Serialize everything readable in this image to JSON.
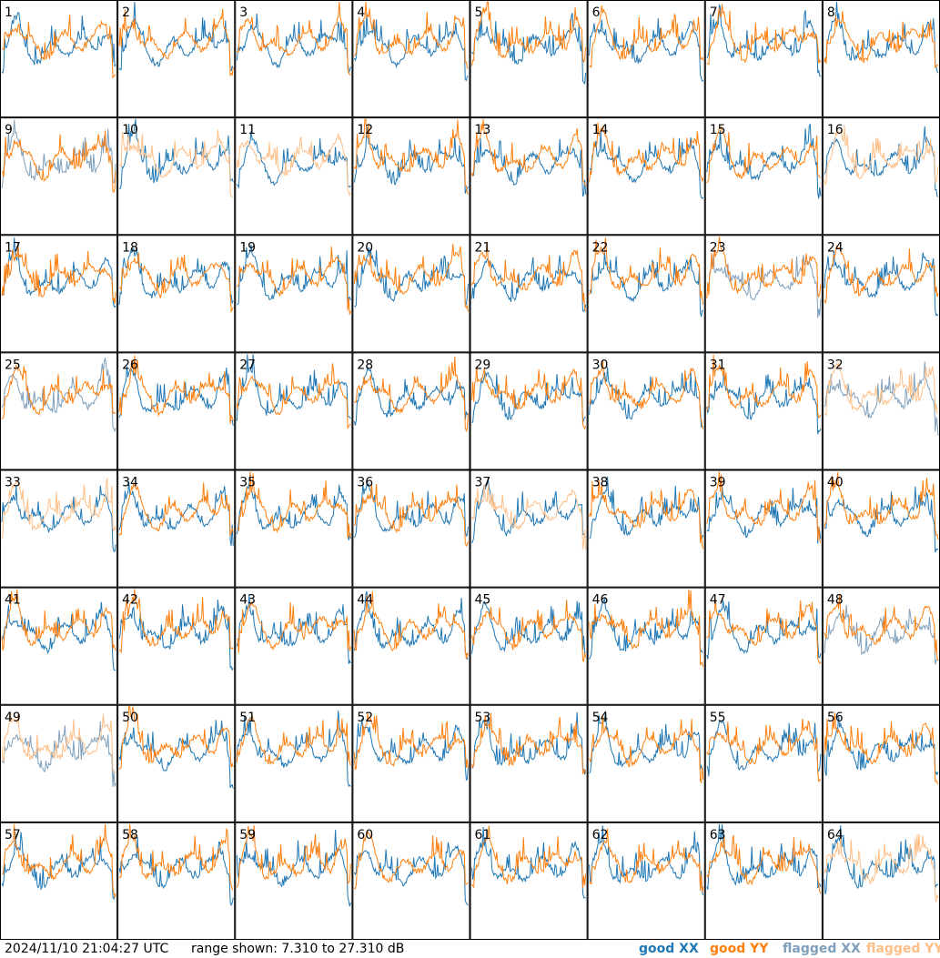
{
  "chart_data": {
    "type": "line",
    "layout": "small-multiples 8x8",
    "timestamp": "2024/11/10 21:04:27 UTC",
    "range_text": "range shown: 7.310 to 27.310 dB",
    "ylim": [
      7.31,
      27.31
    ],
    "colors": {
      "good_xx": "#1f77b4",
      "good_yy": "#ff7f0e",
      "flagged_xx": "#7f9fba",
      "flagged_yy": "#ffbf87"
    },
    "legend": {
      "good_xx": "good XX",
      "good_yy": "good YY",
      "flagged_xx": "flagged XX",
      "flagged_yy": "flagged YY"
    },
    "panels": [
      {
        "label": "1",
        "xx": "good",
        "yy": "good"
      },
      {
        "label": "2",
        "xx": "good",
        "yy": "good"
      },
      {
        "label": "3",
        "xx": "good",
        "yy": "good"
      },
      {
        "label": "4",
        "xx": "good",
        "yy": "good"
      },
      {
        "label": "5",
        "xx": "good",
        "yy": "good"
      },
      {
        "label": "6",
        "xx": "good",
        "yy": "good"
      },
      {
        "label": "7",
        "xx": "good",
        "yy": "good"
      },
      {
        "label": "8",
        "xx": "good",
        "yy": "good"
      },
      {
        "label": "9",
        "xx": "flagged",
        "yy": "good"
      },
      {
        "label": "10",
        "xx": "good",
        "yy": "flagged"
      },
      {
        "label": "11",
        "xx": "good",
        "yy": "flagged"
      },
      {
        "label": "12",
        "xx": "good",
        "yy": "good"
      },
      {
        "label": "13",
        "xx": "good",
        "yy": "good"
      },
      {
        "label": "14",
        "xx": "good",
        "yy": "good"
      },
      {
        "label": "15",
        "xx": "good",
        "yy": "good"
      },
      {
        "label": "16",
        "xx": "good",
        "yy": "flagged"
      },
      {
        "label": "17",
        "xx": "good",
        "yy": "good"
      },
      {
        "label": "18",
        "xx": "good",
        "yy": "good"
      },
      {
        "label": "19",
        "xx": "good",
        "yy": "good"
      },
      {
        "label": "20",
        "xx": "good",
        "yy": "good"
      },
      {
        "label": "21",
        "xx": "good",
        "yy": "good"
      },
      {
        "label": "22",
        "xx": "good",
        "yy": "good"
      },
      {
        "label": "23",
        "xx": "flagged",
        "yy": "good"
      },
      {
        "label": "24",
        "xx": "good",
        "yy": "good"
      },
      {
        "label": "25",
        "xx": "flagged",
        "yy": "good"
      },
      {
        "label": "26",
        "xx": "good",
        "yy": "good"
      },
      {
        "label": "27",
        "xx": "good",
        "yy": "good"
      },
      {
        "label": "28",
        "xx": "good",
        "yy": "good"
      },
      {
        "label": "29",
        "xx": "good",
        "yy": "good"
      },
      {
        "label": "30",
        "xx": "good",
        "yy": "good"
      },
      {
        "label": "31",
        "xx": "good",
        "yy": "good"
      },
      {
        "label": "32",
        "xx": "flagged",
        "yy": "flagged"
      },
      {
        "label": "33",
        "xx": "good",
        "yy": "flagged"
      },
      {
        "label": "34",
        "xx": "good",
        "yy": "good"
      },
      {
        "label": "35",
        "xx": "good",
        "yy": "good"
      },
      {
        "label": "36",
        "xx": "good",
        "yy": "good"
      },
      {
        "label": "37",
        "xx": "good",
        "yy": "flagged"
      },
      {
        "label": "38",
        "xx": "good",
        "yy": "good"
      },
      {
        "label": "39",
        "xx": "good",
        "yy": "good"
      },
      {
        "label": "40",
        "xx": "good",
        "yy": "good"
      },
      {
        "label": "41",
        "xx": "good",
        "yy": "good"
      },
      {
        "label": "42",
        "xx": "good",
        "yy": "good"
      },
      {
        "label": "43",
        "xx": "good",
        "yy": "good"
      },
      {
        "label": "44",
        "xx": "good",
        "yy": "good"
      },
      {
        "label": "45",
        "xx": "good",
        "yy": "good"
      },
      {
        "label": "46",
        "xx": "good",
        "yy": "good"
      },
      {
        "label": "47",
        "xx": "good",
        "yy": "good"
      },
      {
        "label": "48",
        "xx": "flagged",
        "yy": "good"
      },
      {
        "label": "49",
        "xx": "flagged",
        "yy": "flagged"
      },
      {
        "label": "50",
        "xx": "good",
        "yy": "good"
      },
      {
        "label": "51",
        "xx": "good",
        "yy": "good"
      },
      {
        "label": "52",
        "xx": "good",
        "yy": "good"
      },
      {
        "label": "53",
        "xx": "good",
        "yy": "good"
      },
      {
        "label": "54",
        "xx": "good",
        "yy": "good"
      },
      {
        "label": "55",
        "xx": "good",
        "yy": "good"
      },
      {
        "label": "56",
        "xx": "good",
        "yy": "good"
      },
      {
        "label": "57",
        "xx": "good",
        "yy": "good"
      },
      {
        "label": "58",
        "xx": "good",
        "yy": "good"
      },
      {
        "label": "59",
        "xx": "good",
        "yy": "good"
      },
      {
        "label": "60",
        "xx": "good",
        "yy": "good"
      },
      {
        "label": "61",
        "xx": "good",
        "yy": "good"
      },
      {
        "label": "62",
        "xx": "good",
        "yy": "good"
      },
      {
        "label": "63",
        "xx": "good",
        "yy": "good"
      },
      {
        "label": "64",
        "xx": "good",
        "yy": "flagged"
      }
    ]
  }
}
